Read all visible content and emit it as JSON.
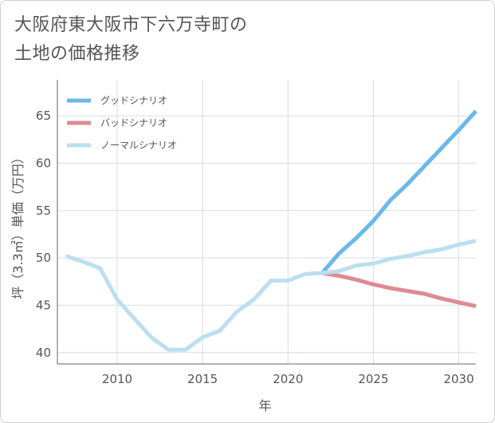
{
  "chart_data": {
    "type": "line",
    "title_lines": [
      "大阪府東大阪市下六万寺町の",
      "土地の価格推移"
    ],
    "xlabel": "年",
    "ylabel": "坪（3.3㎡）単価（万円）",
    "xlim": [
      2006.5,
      2031
    ],
    "ylim": [
      38.8,
      68.8
    ],
    "xticks": [
      2010,
      2015,
      2020,
      2025,
      2030
    ],
    "yticks": [
      40,
      45,
      50,
      55,
      60,
      65
    ],
    "grid": true,
    "legend_position": "top-left",
    "series": [
      {
        "name": "グッドシナリオ",
        "color": "#6ab8ea",
        "points": [
          [
            2022,
            48.4
          ],
          [
            2023,
            50.5
          ],
          [
            2024,
            52.1
          ],
          [
            2025,
            53.9
          ],
          [
            2026,
            56.1
          ],
          [
            2027,
            57.8
          ],
          [
            2028,
            59.7
          ],
          [
            2029,
            61.6
          ],
          [
            2030,
            63.5
          ],
          [
            2031,
            65.5
          ]
        ]
      },
      {
        "name": "バッドシナリオ",
        "color": "#de8a92",
        "points": [
          [
            2022,
            48.4
          ],
          [
            2023,
            48.1
          ],
          [
            2024,
            47.7
          ],
          [
            2025,
            47.2
          ],
          [
            2026,
            46.8
          ],
          [
            2027,
            46.5
          ],
          [
            2028,
            46.2
          ],
          [
            2029,
            45.7
          ],
          [
            2030,
            45.3
          ],
          [
            2031,
            44.9
          ]
        ]
      },
      {
        "name": "ノーマルシナリオ",
        "color": "#bcdff0",
        "points": [
          [
            2007,
            50.2
          ],
          [
            2008,
            49.6
          ],
          [
            2009,
            48.9
          ],
          [
            2010,
            45.6
          ],
          [
            2011,
            43.6
          ],
          [
            2012,
            41.6
          ],
          [
            2013,
            40.3
          ],
          [
            2014,
            40.3
          ],
          [
            2015,
            41.6
          ],
          [
            2016,
            42.3
          ],
          [
            2017,
            44.3
          ],
          [
            2018,
            45.6
          ],
          [
            2019,
            47.6
          ],
          [
            2020,
            47.6
          ],
          [
            2021,
            48.3
          ],
          [
            2022,
            48.4
          ],
          [
            2023,
            48.6
          ],
          [
            2024,
            49.2
          ],
          [
            2025,
            49.4
          ],
          [
            2026,
            49.9
          ],
          [
            2027,
            50.2
          ],
          [
            2028,
            50.6
          ],
          [
            2029,
            50.9
          ],
          [
            2030,
            51.4
          ],
          [
            2031,
            51.8
          ]
        ]
      }
    ]
  }
}
